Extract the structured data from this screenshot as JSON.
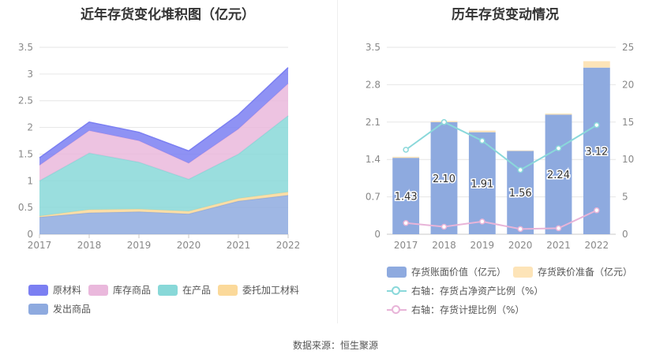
{
  "left": {
    "title": "近年存货变化堆积图（亿元）",
    "legend": [
      {
        "name": "原材料",
        "color": "#7b7ff2"
      },
      {
        "name": "库存商品",
        "color": "#eab8dc"
      },
      {
        "name": "在产品",
        "color": "#88d8d8"
      },
      {
        "name": "委托加工材料",
        "color": "#fbd99a"
      },
      {
        "name": "发出商品",
        "color": "#8eaadf"
      }
    ]
  },
  "right": {
    "title": "历年存货变动情况",
    "legend": [
      {
        "name": "存货账面价值（亿元）",
        "color": "#8eaadf"
      },
      {
        "name": "存货跌价准备（亿元）",
        "color": "#fde4b8"
      },
      {
        "name": "右轴：存货占净资产比例（%）",
        "color": "#8ad8da"
      },
      {
        "name": "右轴：存货计提比例（%）",
        "color": "#e8b4d8"
      }
    ]
  },
  "source": "数据来源：恒生聚源",
  "chart_data": [
    {
      "type": "area",
      "stacked": true,
      "x": [
        "2017",
        "2018",
        "2019",
        "2020",
        "2021",
        "2022"
      ],
      "ylim": [
        0,
        3.5
      ],
      "yticks": [
        "0",
        "0.5",
        "1",
        "1.5",
        "2",
        "2.5",
        "3",
        "3.5"
      ],
      "grid": true,
      "legend_position": "bottom",
      "series": [
        {
          "name": "发出商品",
          "color": "#8eaadf",
          "values": [
            0.32,
            0.4,
            0.42,
            0.38,
            0.62,
            0.73
          ]
        },
        {
          "name": "委托加工材料",
          "color": "#fbd99a",
          "values": [
            0.02,
            0.06,
            0.05,
            0.05,
            0.05,
            0.06
          ]
        },
        {
          "name": "在产品",
          "color": "#88d8d8",
          "values": [
            0.66,
            1.06,
            0.88,
            0.6,
            0.83,
            1.43
          ]
        },
        {
          "name": "库存商品",
          "color": "#eab8dc",
          "values": [
            0.29,
            0.42,
            0.4,
            0.3,
            0.47,
            0.6
          ]
        },
        {
          "name": "原材料",
          "color": "#7b7ff2",
          "values": [
            0.14,
            0.16,
            0.16,
            0.23,
            0.27,
            0.3
          ]
        }
      ]
    },
    {
      "type": "bar",
      "stacked": true,
      "categories": [
        "2017",
        "2018",
        "2019",
        "2020",
        "2021",
        "2022"
      ],
      "ylim": [
        0,
        3.5
      ],
      "yticks": [
        "0",
        "0.7",
        "1.4",
        "2.1",
        "2.8",
        "3.5"
      ],
      "y2lim": [
        0,
        25
      ],
      "y2ticks": [
        "0",
        "5",
        "10",
        "15",
        "20",
        "25"
      ],
      "grid": true,
      "legend_position": "bottom",
      "series": [
        {
          "name": "存货账面价值（亿元）",
          "axis": "left",
          "color": "#8eaadf",
          "values": [
            1.43,
            2.1,
            1.91,
            1.56,
            2.24,
            3.12
          ],
          "labels": [
            "1.43",
            "2.10",
            "1.91",
            "1.56",
            "2.24",
            "3.12"
          ]
        },
        {
          "name": "存货跌价准备（亿元）",
          "axis": "left",
          "color": "#fde4b8",
          "values": [
            0.02,
            0.02,
            0.03,
            0.01,
            0.02,
            0.12
          ]
        },
        {
          "name": "右轴：存货占净资产比例（%）",
          "axis": "right",
          "type": "line",
          "color": "#8ad8da",
          "values": [
            11.3,
            15.0,
            12.5,
            8.6,
            11.5,
            14.6
          ]
        },
        {
          "name": "右轴：存货计提比例（%）",
          "axis": "right",
          "type": "line",
          "color": "#e8b4d8",
          "values": [
            1.5,
            1.0,
            1.7,
            0.7,
            0.8,
            3.2
          ]
        }
      ]
    }
  ]
}
